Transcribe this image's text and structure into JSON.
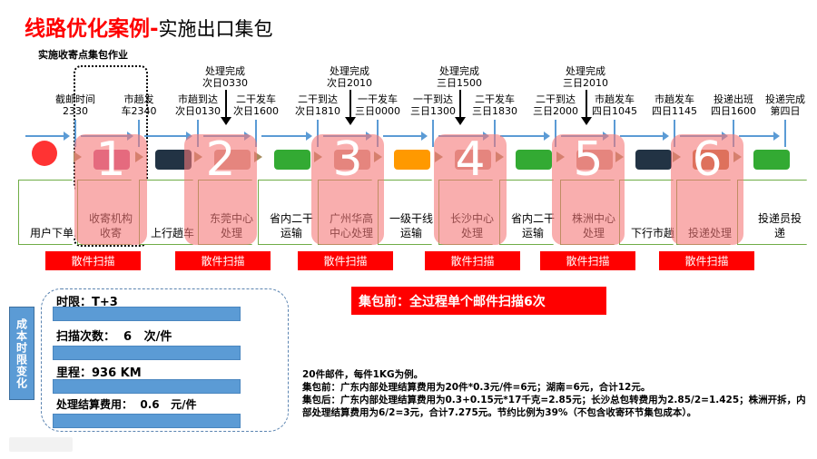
{
  "title": {
    "red": "线路优化案例-",
    "black": "实施出口集包"
  },
  "subtitle": "实施收寄点集包作业",
  "timeline": [
    {
      "l1": "截邮时间",
      "l2": "2330"
    },
    {
      "l1": "市趟发",
      "l2": "车2340"
    },
    {
      "l1": "市趟到达",
      "l2": "次日0130"
    },
    {
      "l1": "二干发车",
      "l2": "次日1600"
    },
    {
      "l1": "二干到达",
      "l2": "次日1810"
    },
    {
      "l1": "一干发车",
      "l2": "三日0000"
    },
    {
      "l1": "一干到达",
      "l2": "三日1300"
    },
    {
      "l1": "二干发车",
      "l2": "三日1830"
    },
    {
      "l1": "二干到达",
      "l2": "三日2000"
    },
    {
      "l1": "市趟发车",
      "l2": "四日1045"
    },
    {
      "l1": "市趟发车",
      "l2": "四日1145"
    },
    {
      "l1": "投递出班",
      "l2": "四日1600"
    },
    {
      "l1": "投递完成",
      "l2": "第四日"
    }
  ],
  "processing": [
    {
      "l1": "处理完成",
      "l2": "次日0330"
    },
    {
      "l1": "处理完成",
      "l2": "次日2010"
    },
    {
      "l1": "处理完成",
      "l2": "三日1500"
    },
    {
      "l1": "处理完成",
      "l2": "三日2010"
    }
  ],
  "stages": [
    "用户下单",
    "收寄机构收寄",
    "上行趟车",
    "东莞中心处理",
    "省内二干运输",
    "广州华高中心处理",
    "一级干线运输",
    "长沙中心处理",
    "省内二干运输",
    "株洲中心处理",
    "下行市趟",
    "投递处理",
    "投递员投递"
  ],
  "overlay_numbers": [
    "1",
    "2",
    "3",
    "4",
    "5",
    "6"
  ],
  "scan_label": "散件扫描",
  "icons": [
    "taobao-logo-icon",
    "parcels-icon",
    "van-icon",
    "warehouse-icon",
    "green-truck-icon",
    "warehouse-icon",
    "orange-truck-icon",
    "warehouse-icon",
    "green-truck-icon",
    "warehouse-icon",
    "van-icon",
    "shelf-icon",
    "courier-scooter-icon"
  ],
  "side_label": "成本时限变化",
  "metrics": [
    {
      "label": "时限：T+3"
    },
    {
      "label": "扫描次数：  6   次/件"
    },
    {
      "label": "里程：936 KM"
    },
    {
      "label": "处理结算费用：  0.6   元/件"
    }
  ],
  "banner": "集包前：全过程单个邮件扫描6次",
  "note": [
    "20件邮件，每件1KG为例。",
    "集包前：广东内部处理结算费用为20件*0.3元/件=6元；湖南=6元，合计12元。",
    "集包后：广东内部处理结算费用为0.3+0.15元*17千克=2.85元；长沙总包转费用为2.85/2=1.425；株洲开拆，内部处理结算费用为6/2=3元，合计7.275元。节约比例为39%（不包含收寄环节集包成本）。"
  ],
  "colors": {
    "accent": "#ff0000",
    "blue": "#5b9bd5",
    "overlay": "#f57878",
    "chevron_border": "#70ad47"
  }
}
